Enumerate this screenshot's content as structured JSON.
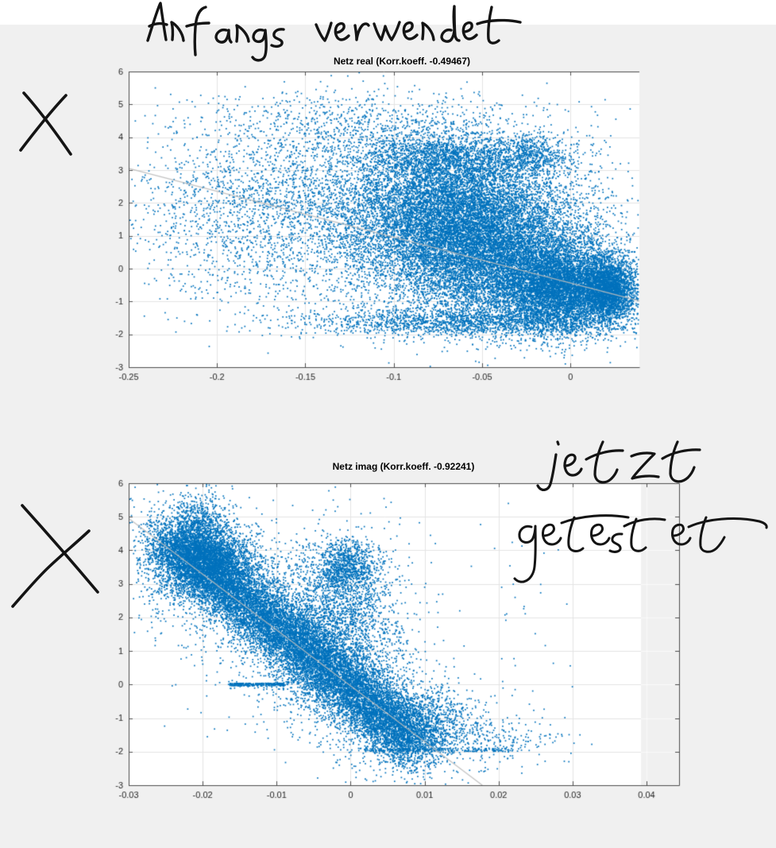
{
  "page": {
    "background_color": "#f0f0f0",
    "top_strip_color": "#ffffff"
  },
  "annotations": {
    "ink_color": "#141414",
    "top_note": "Anfangs verwendet",
    "x_mark_top": "X",
    "x_mark_bottom": "X",
    "bottom_note_line1": "jetzt",
    "bottom_note_line2": "getestet"
  },
  "chart_data": [
    {
      "type": "scatter",
      "title": "Netz real (Korr.koeff. -0.49467)",
      "corr_coeff": -0.49467,
      "xlim": [
        -0.25,
        0.039
      ],
      "ylim": [
        -3,
        6
      ],
      "xticks": [
        -0.25,
        -0.2,
        -0.15,
        -0.1,
        -0.05,
        0
      ],
      "xtick_labels": [
        "-0.25",
        "-0.2",
        "-0.15",
        "-0.1",
        "-0.05",
        "0"
      ],
      "yticks": [
        -3,
        -2,
        -1,
        0,
        1,
        2,
        3,
        4,
        5,
        6
      ],
      "ytick_labels": [
        "-3",
        "-2",
        "-1",
        "0",
        "1",
        "2",
        "3",
        "4",
        "5",
        "6"
      ],
      "grid": true,
      "legend": "none",
      "point_color": "#0072BD",
      "fit_line": {
        "color": "#bdbdbd",
        "x1": -0.25,
        "y1": 3.05,
        "x2": 0.039,
        "y2": -0.98
      },
      "clusters": [
        {
          "shape": "gauss",
          "cx": -0.1,
          "cy": 1.6,
          "sx": 0.06,
          "sy": 1.35,
          "n": 3500
        },
        {
          "shape": "gauss",
          "cx": -0.185,
          "cy": 1.8,
          "sx": 0.032,
          "sy": 1.25,
          "n": 900
        },
        {
          "shape": "gauss",
          "cx": -0.12,
          "cy": 4.35,
          "sx": 0.045,
          "sy": 0.55,
          "n": 700
        },
        {
          "shape": "gauss",
          "cx": -0.068,
          "cy": 1.7,
          "sx": 0.03,
          "sy": 1.05,
          "n": 7000
        },
        {
          "shape": "gauss",
          "cx": -0.045,
          "cy": 0.35,
          "sx": 0.03,
          "sy": 1.0,
          "n": 7000
        },
        {
          "shape": "gauss",
          "cx": -0.005,
          "cy": -0.55,
          "sx": 0.018,
          "sy": 0.68,
          "n": 6000
        },
        {
          "shape": "gauss",
          "cx": 0.022,
          "cy": -0.65,
          "sx": 0.008,
          "sy": 0.45,
          "n": 2500
        },
        {
          "shape": "gauss",
          "cx": -0.055,
          "cy": -1.62,
          "sx": 0.048,
          "sy": 0.22,
          "n": 1800
        },
        {
          "shape": "gauss",
          "cx": -0.07,
          "cy": 3.35,
          "sx": 0.026,
          "sy": 0.38,
          "n": 1500
        },
        {
          "shape": "gauss",
          "cx": -0.022,
          "cy": 3.45,
          "sx": 0.012,
          "sy": 0.3,
          "n": 500
        },
        {
          "shape": "uniform",
          "x0": -0.23,
          "x1": 0.02,
          "y0": -2.1,
          "y1": 5.4,
          "n": 450
        }
      ],
      "extra_points": [
        [
          -0.107,
          -2.45
        ],
        [
          -0.03,
          -2.2
        ],
        [
          0.033,
          -0.2
        ]
      ]
    },
    {
      "type": "scatter",
      "title": "Netz imag (Korr.koeff. -0.92241)",
      "corr_coeff": -0.92241,
      "xlim": [
        -0.03,
        0.0444
      ],
      "ylim": [
        -3,
        6
      ],
      "xticks": [
        -0.03,
        -0.02,
        -0.01,
        0,
        0.01,
        0.02,
        0.03,
        0.04
      ],
      "xtick_labels": [
        "-0.03",
        "-0.02",
        "-0.01",
        "0",
        "0.01",
        "0.02",
        "0.03",
        "0.04"
      ],
      "yticks": [
        -3,
        -2,
        -1,
        0,
        1,
        2,
        3,
        4,
        5,
        6
      ],
      "ytick_labels": [
        "-3",
        "-2",
        "-1",
        "0",
        "1",
        "2",
        "3",
        "4",
        "5",
        "6"
      ],
      "grid": true,
      "legend": "none",
      "point_color": "#0072BD",
      "fit_line": {
        "color": "#bdbdbd",
        "x1": -0.03,
        "y1": 4.95,
        "x2": 0.0178,
        "y2": -3.0
      },
      "clusters": [
        {
          "shape": "band",
          "x1": -0.0245,
          "y1": 4.35,
          "x2": 0.0095,
          "y2": -1.85,
          "sx": 0.0022,
          "sy": 0.45,
          "n": 14000
        },
        {
          "shape": "band",
          "x1": -0.0245,
          "y1": 4.35,
          "x2": 0.0095,
          "y2": -1.85,
          "sx": 0.005,
          "sy": 1.0,
          "n": 3000
        },
        {
          "shape": "gauss",
          "cx": -0.0205,
          "cy": 4.9,
          "sx": 0.0018,
          "sy": 0.4,
          "n": 500
        },
        {
          "shape": "gauss",
          "cx": -0.019,
          "cy": 3.7,
          "sx": 0.0028,
          "sy": 0.5,
          "n": 2500
        },
        {
          "shape": "gauss",
          "cx": -0.026,
          "cy": 3.8,
          "sx": 0.0018,
          "sy": 0.7,
          "n": 300
        },
        {
          "shape": "gauss",
          "cx": -0.002,
          "cy": 1.9,
          "sx": 0.0045,
          "sy": 1.15,
          "n": 2200
        },
        {
          "shape": "gauss",
          "cx": -0.0005,
          "cy": 3.5,
          "sx": 0.0022,
          "sy": 0.38,
          "n": 900
        },
        {
          "shape": "gauss",
          "cx": 0.011,
          "cy": -1.15,
          "sx": 0.004,
          "sy": 0.5,
          "n": 700
        },
        {
          "shape": "gauss",
          "cx": 0.021,
          "cy": -1.6,
          "sx": 0.004,
          "sy": 0.35,
          "n": 150
        },
        {
          "shape": "uniform",
          "x0": -0.0165,
          "x1": -0.009,
          "y0": -0.04,
          "y1": 0.04,
          "n": 250
        },
        {
          "shape": "uniform",
          "x0": 0.001,
          "x1": 0.022,
          "y0": -2.0,
          "y1": -1.9,
          "n": 200
        },
        {
          "shape": "uniform",
          "x0": -0.028,
          "x1": 0.03,
          "y0": -2.4,
          "y1": 5.5,
          "n": 120
        }
      ],
      "extra_points": [
        [
          0.0295,
          -2.3
        ],
        [
          0.031,
          -1.5
        ],
        [
          0.024,
          -1.7
        ],
        [
          0.027,
          -1.2
        ]
      ]
    }
  ]
}
